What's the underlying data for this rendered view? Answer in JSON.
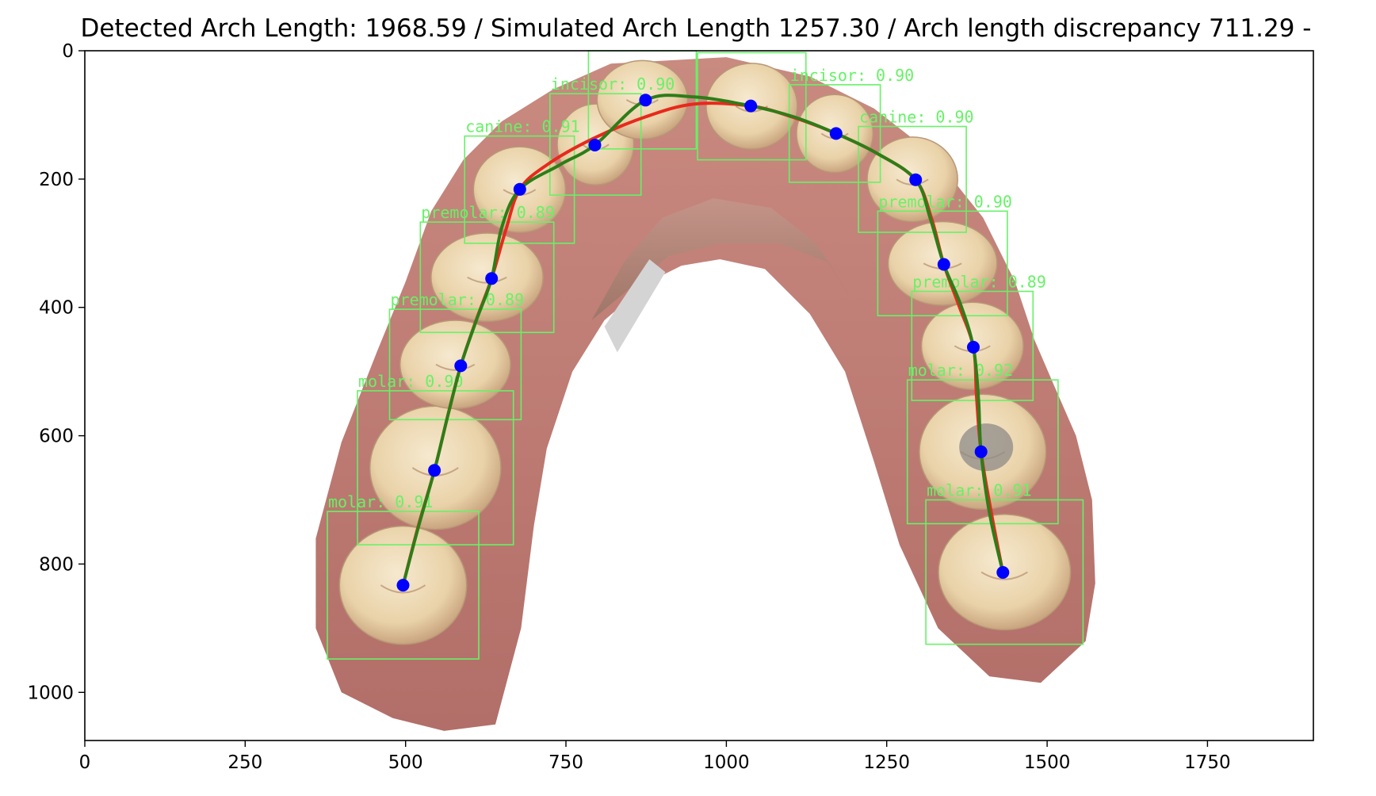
{
  "chart_data": {
    "type": "scatter",
    "title": "Detected Arch Length: 1968.59 / Simulated Arch Length 1257.30 / Arch length discrepancy 711.29 -",
    "xlabel": "",
    "ylabel": "",
    "xlim": [
      0,
      1915
    ],
    "ylim": [
      1075,
      0
    ],
    "y_inverted": true,
    "grid": false,
    "xticks": [
      0,
      250,
      500,
      750,
      1000,
      1250,
      1500,
      1750
    ],
    "yticks": [
      0,
      200,
      400,
      600,
      800,
      1000
    ],
    "background_image": "dental-arch-intraoral-scan",
    "colors": {
      "points": "#0000ff",
      "simulated_curve": "#e8291c",
      "detected_curve": "#2e7d18",
      "boxes": "#66f266"
    },
    "detections": [
      {
        "label": "molar: 0.91",
        "x0": 378,
        "y0": 718,
        "x1": 614,
        "y1": 948
      },
      {
        "label": "molar: 0.90",
        "x0": 425,
        "y0": 530,
        "x1": 668,
        "y1": 770
      },
      {
        "label": "premolar: 0.89",
        "x0": 475,
        "y0": 403,
        "x1": 680,
        "y1": 575
      },
      {
        "label": "premolar: 0.89",
        "x0": 523,
        "y0": 267,
        "x1": 731,
        "y1": 439
      },
      {
        "label": "canine: 0.91",
        "x0": 592,
        "y0": 133,
        "x1": 763,
        "y1": 300
      },
      {
        "label": "incisor: 0.90",
        "x0": 725,
        "y0": 67,
        "x1": 867,
        "y1": 225
      },
      {
        "label": "",
        "x0": 785,
        "y0": 0,
        "x1": 953,
        "y1": 153
      },
      {
        "label": "",
        "x0": 955,
        "y0": 3,
        "x1": 1124,
        "y1": 170
      },
      {
        "label": "incisor: 0.90",
        "x0": 1098,
        "y0": 53,
        "x1": 1240,
        "y1": 205
      },
      {
        "label": "canine: 0.90",
        "x0": 1206,
        "y0": 118,
        "x1": 1374,
        "y1": 283
      },
      {
        "label": "premolar: 0.90",
        "x0": 1236,
        "y0": 250,
        "x1": 1438,
        "y1": 413
      },
      {
        "label": "premolar: 0.89",
        "x0": 1289,
        "y0": 375,
        "x1": 1478,
        "y1": 545
      },
      {
        "label": "molar: 0.92",
        "x0": 1282,
        "y0": 513,
        "x1": 1517,
        "y1": 737
      },
      {
        "label": "molar: 0.91",
        "x0": 1311,
        "y0": 700,
        "x1": 1556,
        "y1": 925
      }
    ],
    "series": [
      {
        "type": "scatter",
        "x": [
          496,
          545,
          586,
          634,
          678,
          795,
          874,
          1038,
          1171,
          1295,
          1339,
          1385,
          1397,
          1431
        ],
        "y": [
          833,
          654,
          491,
          355,
          216,
          147,
          77,
          86,
          129,
          201,
          333,
          462,
          625,
          813
        ]
      },
      {
        "type": "line",
        "x": [
          496,
          520,
          545,
          566,
          586,
          610,
          634,
          656,
          678,
          720,
          790,
          874,
          950,
          1038,
          1105,
          1171,
          1235,
          1295,
          1320,
          1339,
          1362,
          1385,
          1390,
          1397,
          1413,
          1431
        ],
        "y": [
          833,
          740,
          654,
          568,
          491,
          420,
          355,
          280,
          216,
          178,
          138,
          103,
          83,
          86,
          104,
          129,
          160,
          201,
          262,
          333,
          396,
          462,
          540,
          625,
          720,
          813
        ]
      },
      {
        "type": "line",
        "x": [
          496,
          520,
          545,
          566,
          586,
          610,
          634,
          650,
          678,
          740,
          795,
          874,
          950,
          1038,
          1105,
          1171,
          1235,
          1295,
          1318,
          1339,
          1365,
          1385,
          1393,
          1397,
          1410,
          1431
        ],
        "y": [
          833,
          742,
          654,
          568,
          491,
          421,
          355,
          275,
          216,
          178,
          147,
          77,
          72,
          86,
          103,
          129,
          160,
          201,
          262,
          333,
          395,
          462,
          543,
          625,
          720,
          813
        ]
      }
    ]
  }
}
